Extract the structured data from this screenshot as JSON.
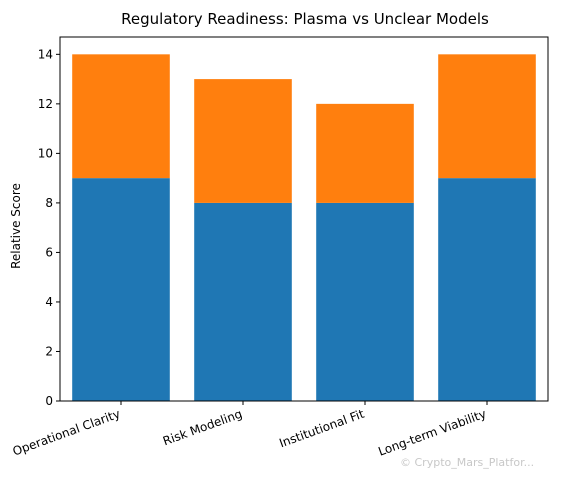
{
  "chart_data": {
    "type": "bar",
    "stacked": true,
    "title": "Regulatory Readiness: Plasma vs Unclear Models",
    "xlabel": "",
    "ylabel": "Relative Score",
    "categories": [
      "Operational Clarity",
      "Risk Modeling",
      "Institutional Fit",
      "Long-term Viability"
    ],
    "series": [
      {
        "values": [
          9,
          8,
          8,
          9
        ],
        "color": "#1f77b4"
      },
      {
        "values": [
          5,
          5,
          4,
          5
        ],
        "color": "#ff7f0e"
      }
    ],
    "ylim": [
      0,
      14.7
    ],
    "yticks": [
      0,
      2,
      4,
      6,
      8,
      10,
      12,
      14
    ],
    "grid": false,
    "legend": "none"
  },
  "watermark": "© Crypto_Mars_Platfor..."
}
